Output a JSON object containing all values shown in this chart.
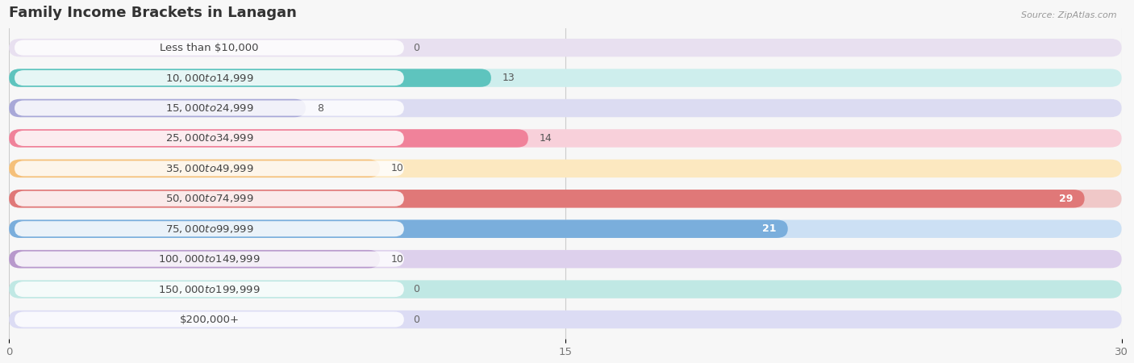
{
  "title": "Family Income Brackets in Lanagan",
  "source": "Source: ZipAtlas.com",
  "categories": [
    "Less than $10,000",
    "$10,000 to $14,999",
    "$15,000 to $24,999",
    "$25,000 to $34,999",
    "$35,000 to $49,999",
    "$50,000 to $74,999",
    "$75,000 to $99,999",
    "$100,000 to $149,999",
    "$150,000 to $199,999",
    "$200,000+"
  ],
  "values": [
    0,
    13,
    8,
    14,
    10,
    29,
    21,
    10,
    0,
    0
  ],
  "bar_colors": [
    "#c9b8d8",
    "#5ec4be",
    "#a8a8d8",
    "#f0829a",
    "#f5c07a",
    "#e07878",
    "#7aaedc",
    "#b899cc",
    "#6dc8b8",
    "#b8b8e0"
  ],
  "bar_bg_colors": [
    "#e8e0f0",
    "#ceeeed",
    "#dcdcf2",
    "#f8d0da",
    "#fce8c0",
    "#f0c8c8",
    "#cce0f4",
    "#ddd0ec",
    "#c0e8e4",
    "#dcdcf4"
  ],
  "xlim": [
    0,
    30
  ],
  "xticks": [
    0,
    15,
    30
  ],
  "background_color": "#f7f7f7",
  "bar_height": 0.6,
  "title_fontsize": 13,
  "label_fontsize": 9.5,
  "value_fontsize": 9
}
